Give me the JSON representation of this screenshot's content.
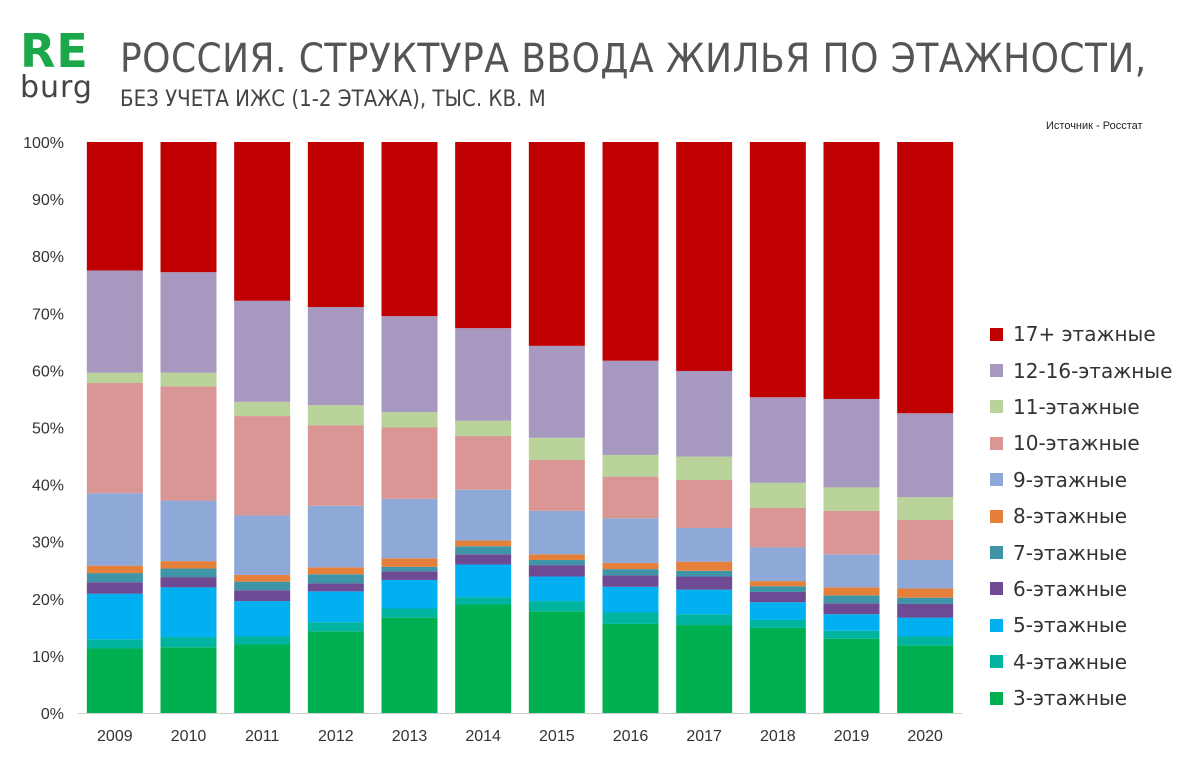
{
  "header": {
    "logo_top": "RE",
    "logo_bottom": "burg",
    "title": "РОССИЯ. СТРУКТУРА ВВОДА ЖИЛЬЯ ПО ЭТАЖНОСТИ,",
    "subtitle": "БЕЗ УЧЕТА ИЖС (1-2 ЭТАЖА), ТЫС. КВ. М",
    "source": "Источник  - Росстат"
  },
  "chart_data": {
    "type": "bar",
    "stacked": true,
    "percent": true,
    "categories": [
      "2009",
      "2010",
      "2011",
      "2012",
      "2013",
      "2014",
      "2015",
      "2016",
      "2017",
      "2018",
      "2019",
      "2020"
    ],
    "y_ticks": [
      "0%",
      "10%",
      "20%",
      "30%",
      "40%",
      "50%",
      "60%",
      "70%",
      "80%",
      "90%",
      "100%"
    ],
    "ylim": [
      0,
      100
    ],
    "legend_position": "right",
    "series": [
      {
        "name": "3-этажные",
        "color": "#00b050",
        "values": [
          11.3,
          11.5,
          12.0,
          14.3,
          16.7,
          19.0,
          17.8,
          15.6,
          15.4,
          14.9,
          13.0,
          11.8
        ]
      },
      {
        "name": "4-этажные",
        "color": "#00b4a0",
        "values": [
          1.6,
          1.8,
          1.4,
          1.6,
          1.6,
          1.3,
          1.8,
          2.0,
          1.9,
          1.4,
          1.4,
          1.6
        ]
      },
      {
        "name": "5-этажные",
        "color": "#00b0f0",
        "values": [
          8.0,
          8.7,
          6.2,
          5.4,
          5.0,
          5.7,
          4.3,
          4.5,
          4.3,
          3.1,
          2.9,
          3.3
        ]
      },
      {
        "name": "6-этажные",
        "color": "#6e4a94",
        "values": [
          2.0,
          1.8,
          1.9,
          1.4,
          1.5,
          1.8,
          2.0,
          2.0,
          2.3,
          1.8,
          1.9,
          2.4
        ]
      },
      {
        "name": "7-этажные",
        "color": "#3f94a8",
        "values": [
          1.6,
          1.5,
          1.5,
          1.6,
          0.8,
          1.4,
          0.9,
          1.1,
          1.0,
          1.0,
          1.4,
          1.1
        ]
      },
      {
        "name": "8-этажные",
        "color": "#e4803a",
        "values": [
          1.3,
          1.3,
          1.2,
          1.2,
          1.5,
          1.0,
          1.0,
          1.1,
          1.6,
          0.9,
          1.4,
          1.6
        ]
      },
      {
        "name": "9-этажные",
        "color": "#8ea9d8",
        "values": [
          12.7,
          10.6,
          10.4,
          10.8,
          10.4,
          8.9,
          7.6,
          7.8,
          5.9,
          5.9,
          5.8,
          5.0
        ]
      },
      {
        "name": "10-этажные",
        "color": "#d99694",
        "values": [
          19.3,
          20.0,
          17.4,
          14.1,
          12.5,
          9.4,
          8.9,
          7.3,
          8.4,
          6.9,
          7.6,
          7.0
        ]
      },
      {
        "name": "11-этажные",
        "color": "#b9d39a",
        "values": [
          1.8,
          2.4,
          2.5,
          3.5,
          2.7,
          2.7,
          3.9,
          3.8,
          4.1,
          4.4,
          4.1,
          4.0
        ]
      },
      {
        "name": "12-16-этажные",
        "color": "#a798bf",
        "values": [
          17.9,
          17.6,
          17.7,
          17.2,
          16.8,
          16.2,
          16.1,
          16.5,
          15.0,
          15.0,
          15.5,
          14.7
        ]
      },
      {
        "name": "17+  этажные",
        "color": "#c00000",
        "values": [
          22.5,
          22.8,
          27.8,
          28.9,
          30.5,
          32.6,
          35.7,
          38.3,
          40.1,
          44.7,
          45.0,
          47.5
        ]
      }
    ]
  }
}
